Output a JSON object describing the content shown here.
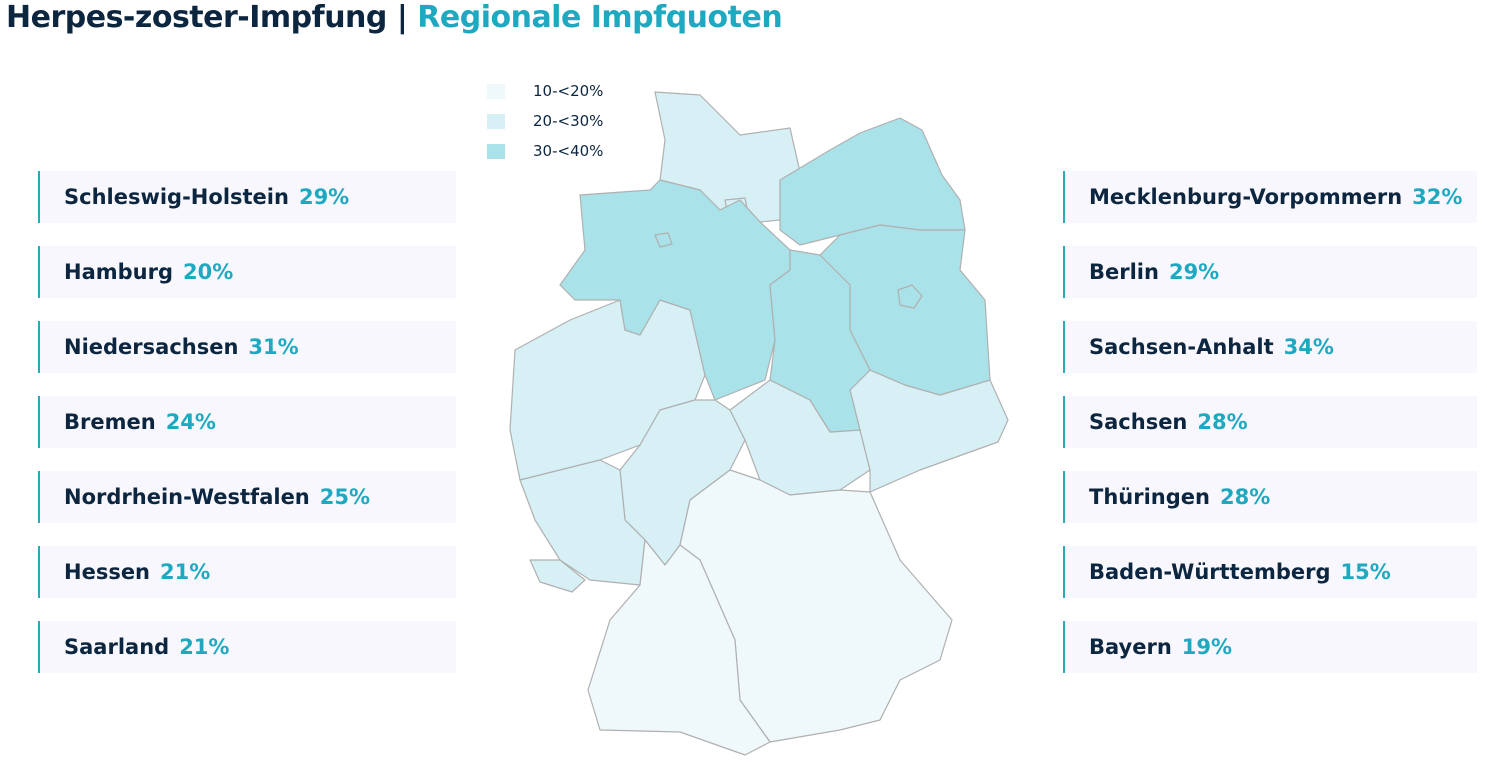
{
  "header": {
    "title": "Herpes-zoster-Impfung",
    "separator": "|",
    "subtitle": "Regionale Impfquoten"
  },
  "legend": [
    {
      "label": "10-<20%",
      "color": "#eff8fa"
    },
    {
      "label": "20-<30%",
      "color": "#d6f0f5"
    },
    {
      "label": "30-<40%",
      "color": "#a9e2e8"
    }
  ],
  "left_regions": [
    {
      "name": "Schleswig-Holstein",
      "value": "29%"
    },
    {
      "name": "Hamburg",
      "value": "20%"
    },
    {
      "name": "Niedersachsen",
      "value": "31%"
    },
    {
      "name": "Bremen",
      "value": "24%"
    },
    {
      "name": "Nordrhein-Westfalen",
      "value": "25%"
    },
    {
      "name": "Hessen",
      "value": "21%"
    },
    {
      "name": "Saarland",
      "value": "21%"
    }
  ],
  "right_regions": [
    {
      "name": "Mecklenburg-Vorpommern",
      "value": "32%"
    },
    {
      "name": "Berlin",
      "value": "29%"
    },
    {
      "name": "Sachsen-Anhalt",
      "value": "34%"
    },
    {
      "name": "Sachsen",
      "value": "28%"
    },
    {
      "name": "Thüringen",
      "value": "28%"
    },
    {
      "name": "Baden-Württemberg",
      "value": "15%"
    },
    {
      "name": "Bayern",
      "value": "19%"
    }
  ]
}
